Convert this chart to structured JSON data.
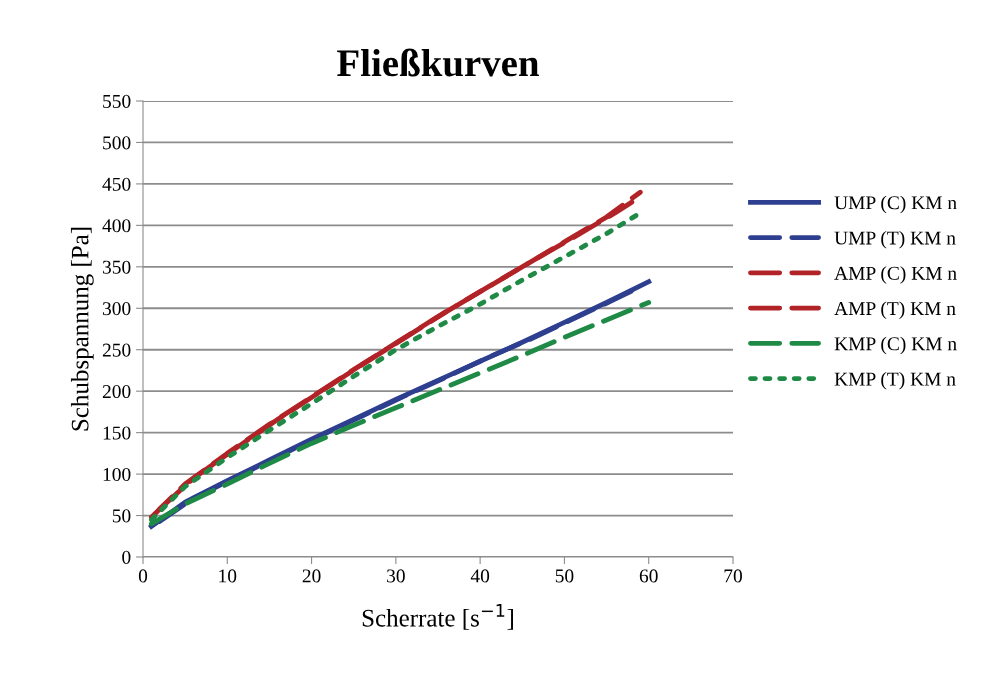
{
  "chart_data": {
    "type": "line",
    "title": "Fließkurven",
    "xlabel": "Scherrate [s$^{−1}$]",
    "ylabel": "Schubspannung [Pa]",
    "xlim": [
      0,
      70
    ],
    "xticks": [
      0,
      10,
      20,
      30,
      40,
      50,
      60,
      70
    ],
    "ylim": [
      0,
      550
    ],
    "yticks": [
      0,
      50,
      100,
      150,
      200,
      250,
      300,
      350,
      400,
      450,
      500,
      550
    ],
    "grid": "y",
    "legend": "right",
    "marker": "none",
    "series": [
      {
        "name": "UMP (C) KM n",
        "color": "#2e3f8f",
        "line_style": "solid",
        "x": [
          1,
          5,
          10,
          15,
          20,
          25,
          30,
          35,
          40,
          45,
          50,
          55,
          60
        ],
        "values": [
          37,
          66,
          92,
          117,
          142,
          166,
          190,
          213,
          236,
          259,
          283,
          307,
          332
        ]
      },
      {
        "name": "UMP (T) KM n",
        "color": "#2e3f8f",
        "line_style": "dashed",
        "x": [
          2,
          6,
          11,
          16,
          21,
          26,
          31,
          36,
          41,
          46,
          51,
          56,
          59
        ],
        "values": [
          43,
          71,
          96,
          121,
          146,
          170,
          194,
          217,
          241,
          263,
          287,
          311,
          326
        ]
      },
      {
        "name": "AMP (C) KM n",
        "color": "#b22327",
        "line_style": "dashed",
        "x": [
          1,
          5,
          10,
          15,
          20,
          25,
          30,
          35,
          40,
          45,
          50,
          55,
          59
        ],
        "values": [
          48,
          88,
          125,
          160,
          193,
          226,
          258,
          290,
          320,
          350,
          380,
          410,
          440
        ]
      },
      {
        "name": "AMP (T) KM n",
        "color": "#b22327",
        "line_style": "dashed",
        "x": [
          2,
          6,
          11,
          16,
          21,
          26,
          31,
          36,
          41,
          46,
          51,
          56,
          58
        ],
        "values": [
          58,
          95,
          131,
          166,
          199,
          232,
          264,
          296,
          326,
          356,
          385,
          415,
          428
        ]
      },
      {
        "name": "KMP (C) KM n",
        "color": "#1e8a45",
        "line_style": "dashed",
        "x": [
          1,
          5,
          10,
          15,
          20,
          25,
          30,
          35,
          40,
          45,
          50,
          55,
          60
        ],
        "values": [
          40,
          64,
          88,
          113,
          137,
          159,
          180,
          201,
          222,
          243,
          265,
          286,
          307
        ]
      },
      {
        "name": "KMP (T) KM n",
        "color": "#1e8a45",
        "line_style": "dotted",
        "x": [
          1,
          5,
          10,
          15,
          20,
          25,
          30,
          35,
          40,
          45,
          50,
          55,
          59
        ],
        "values": [
          45,
          85,
          120,
          153,
          185,
          218,
          250,
          278,
          305,
          334,
          362,
          390,
          415
        ]
      }
    ]
  }
}
